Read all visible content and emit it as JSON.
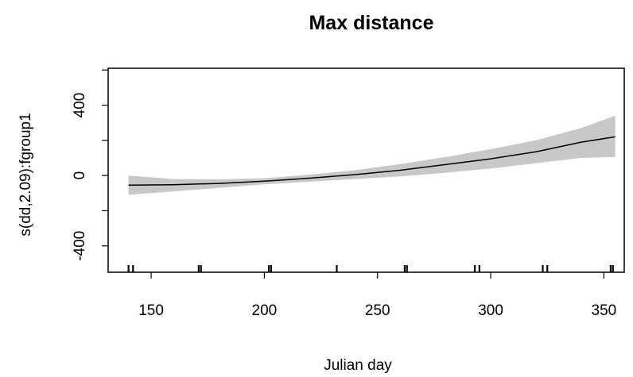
{
  "chart_data": {
    "type": "line",
    "title": "Max distance",
    "xlabel": "Julian day",
    "ylabel": "s(dd,2.09):fgroup1",
    "xlim": [
      131,
      359
    ],
    "ylim": [
      -550,
      610
    ],
    "xticks": [
      150,
      200,
      250,
      300,
      350
    ],
    "xtick_labels": [
      "150",
      "200",
      "250",
      "300",
      "350"
    ],
    "yticks": [
      -400,
      0,
      400
    ],
    "ytick_labels": [
      "-400",
      "0",
      "400"
    ],
    "grid": false,
    "series": [
      {
        "x": [
          140,
          160,
          180,
          200,
          220,
          240,
          260,
          280,
          300,
          320,
          340,
          355
        ],
        "values": [
          -55,
          -52,
          -45,
          -32,
          -15,
          5,
          30,
          62,
          95,
          135,
          190,
          220
        ],
        "lower": [
          -110,
          -90,
          -70,
          -50,
          -35,
          -20,
          -5,
          15,
          40,
          70,
          100,
          105
        ],
        "upper": [
          0,
          -20,
          -22,
          -15,
          5,
          30,
          65,
          105,
          150,
          200,
          270,
          340
        ]
      }
    ],
    "rug": [
      140,
      142,
      171,
      172,
      202,
      203,
      232,
      262,
      263,
      293,
      295,
      323,
      325,
      353,
      354
    ],
    "colors": {
      "line": "#000000",
      "band": "#c8c8c8",
      "axis": "#000000"
    }
  }
}
